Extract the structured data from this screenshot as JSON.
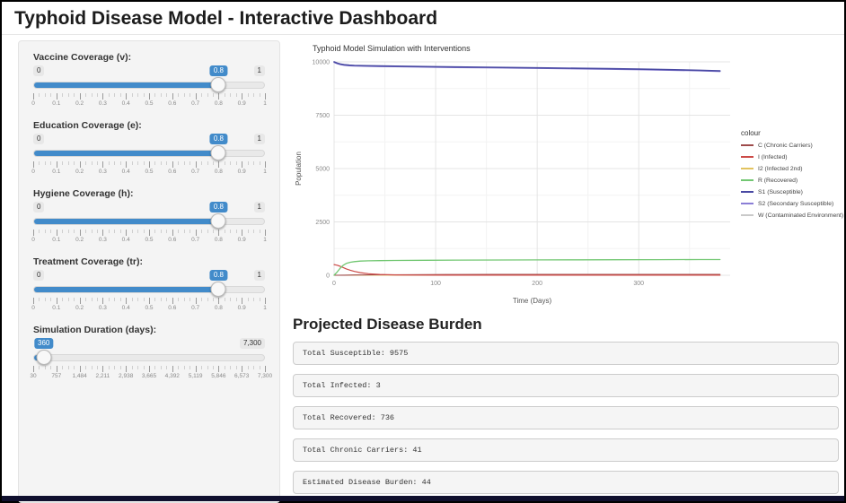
{
  "page": {
    "title": "Typhoid Disease Model - Interactive Dashboard"
  },
  "sidebar": {
    "sliders": [
      {
        "id": "vaccine-coverage",
        "label": "Vaccine Coverage (v):",
        "min": 0,
        "max": 1,
        "value": 0.8,
        "min_label": "0",
        "max_label": "1",
        "value_label": "0.8",
        "show_min": true,
        "ticks": [
          "0",
          "0.1",
          "0.2",
          "0.3",
          "0.4",
          "0.5",
          "0.6",
          "0.7",
          "0.8",
          "0.9",
          "1"
        ]
      },
      {
        "id": "education-coverage",
        "label": "Education Coverage (e):",
        "min": 0,
        "max": 1,
        "value": 0.8,
        "min_label": "0",
        "max_label": "1",
        "value_label": "0.8",
        "show_min": true,
        "ticks": [
          "0",
          "0.1",
          "0.2",
          "0.3",
          "0.4",
          "0.5",
          "0.6",
          "0.7",
          "0.8",
          "0.9",
          "1"
        ]
      },
      {
        "id": "hygiene-coverage",
        "label": "Hygiene Coverage (h):",
        "min": 0,
        "max": 1,
        "value": 0.8,
        "min_label": "0",
        "max_label": "1",
        "value_label": "0.8",
        "show_min": true,
        "ticks": [
          "0",
          "0.1",
          "0.2",
          "0.3",
          "0.4",
          "0.5",
          "0.6",
          "0.7",
          "0.8",
          "0.9",
          "1"
        ]
      },
      {
        "id": "treatment-coverage",
        "label": "Treatment Coverage (tr):",
        "min": 0,
        "max": 1,
        "value": 0.8,
        "min_label": "0",
        "max_label": "1",
        "value_label": "0.8",
        "show_min": true,
        "ticks": [
          "0",
          "0.1",
          "0.2",
          "0.3",
          "0.4",
          "0.5",
          "0.6",
          "0.7",
          "0.8",
          "0.9",
          "1"
        ]
      },
      {
        "id": "simulation-duration",
        "label": "Simulation Duration (days):",
        "min": 30,
        "max": 7300,
        "value": 360,
        "min_label": "30",
        "max_label": "7,300",
        "value_label": "360",
        "show_min": false,
        "ticks": [
          "30",
          "757",
          "1,484",
          "2,211",
          "2,938",
          "3,665",
          "4,392",
          "5,119",
          "5,846",
          "6,573",
          "7,300"
        ]
      }
    ]
  },
  "burden": {
    "heading": "Projected Disease Burden",
    "outputs": [
      "Total Susceptible: 9575",
      "Total Infected: 3",
      "Total Recovered: 736",
      "Total Chronic Carriers: 41",
      "Estimated Disease Burden: 44"
    ]
  },
  "chart_data": {
    "type": "line",
    "title": "Typhoid Model Simulation with Interventions",
    "xlabel": "Time (Days)",
    "ylabel": "Population",
    "xlim": [
      0,
      390
    ],
    "ylim": [
      0,
      10000
    ],
    "xticks": [
      0,
      100,
      200,
      300
    ],
    "yticks": [
      0,
      2500,
      5000,
      7500,
      10000
    ],
    "x_minor": [
      50,
      150,
      250,
      350
    ],
    "y_minor": [
      1250,
      3750,
      6250,
      8750
    ],
    "grid": true,
    "legend_title": "colour",
    "legend_position": "right",
    "series": [
      {
        "name": "C (Chronic Carriers)",
        "color": "#9e4b4b",
        "z": 3,
        "width": 1.1,
        "x": [
          0,
          10,
          20,
          40,
          70,
          110,
          160,
          220,
          290,
          380
        ],
        "y": [
          0,
          6,
          12,
          20,
          27,
          33,
          37,
          40,
          41,
          41
        ]
      },
      {
        "name": "I (Infected)",
        "color": "#cc4b47",
        "z": 4,
        "width": 1.2,
        "x": [
          0,
          3,
          6,
          9,
          12,
          16,
          20,
          26,
          34,
          45,
          60,
          80,
          110,
          150,
          200,
          260,
          320,
          380
        ],
        "y": [
          500,
          470,
          420,
          360,
          300,
          235,
          180,
          120,
          70,
          38,
          18,
          9,
          5,
          3,
          3,
          3,
          3,
          3
        ]
      },
      {
        "name": "I2 (Infected 2nd)",
        "color": "#e2c35f",
        "z": 2,
        "width": 1.0,
        "x": [
          0,
          20,
          60,
          120,
          240,
          380
        ],
        "y": [
          0,
          3,
          4,
          4,
          3,
          2
        ]
      },
      {
        "name": "R (Recovered)",
        "color": "#72c772",
        "z": 5,
        "width": 1.3,
        "x": [
          0,
          3,
          6,
          9,
          12,
          16,
          20,
          26,
          34,
          45,
          60,
          90,
          120,
          160,
          200,
          240,
          280,
          320,
          360,
          380
        ],
        "y": [
          0,
          150,
          330,
          470,
          555,
          610,
          640,
          662,
          676,
          686,
          694,
          702,
          708,
          714,
          719,
          724,
          728,
          731,
          734,
          736
        ]
      },
      {
        "name": "S1 (Susceptible)",
        "color": "#4949a3",
        "z": 7,
        "width": 1.6,
        "x": [
          0,
          3,
          6,
          10,
          15,
          20,
          30,
          45,
          60,
          90,
          120,
          150,
          180,
          210,
          240,
          270,
          300,
          330,
          360,
          380
        ],
        "y": [
          10000,
          9940,
          9900,
          9865,
          9845,
          9833,
          9820,
          9808,
          9797,
          9779,
          9762,
          9746,
          9730,
          9714,
          9698,
          9680,
          9660,
          9636,
          9605,
          9575
        ]
      },
      {
        "name": "S2 (Secondary Susceptible)",
        "color": "#8b7ed6",
        "z": 6,
        "width": 1.3,
        "x": [
          0,
          3,
          6,
          10,
          15,
          20,
          30,
          45,
          60,
          90,
          120,
          150,
          180,
          210,
          240,
          270,
          300,
          330,
          360,
          380
        ],
        "y": [
          9975,
          9915,
          9875,
          9840,
          9820,
          9808,
          9795,
          9783,
          9772,
          9754,
          9737,
          9721,
          9705,
          9689,
          9673,
          9655,
          9635,
          9611,
          9580,
          9550
        ]
      },
      {
        "name": "W (Contaminated Environment)",
        "color": "#c9c9c9",
        "z": 1,
        "width": 1.0,
        "x": [
          0,
          60,
          150,
          260,
          380
        ],
        "y": [
          1,
          2,
          2,
          2,
          2
        ]
      }
    ]
  }
}
